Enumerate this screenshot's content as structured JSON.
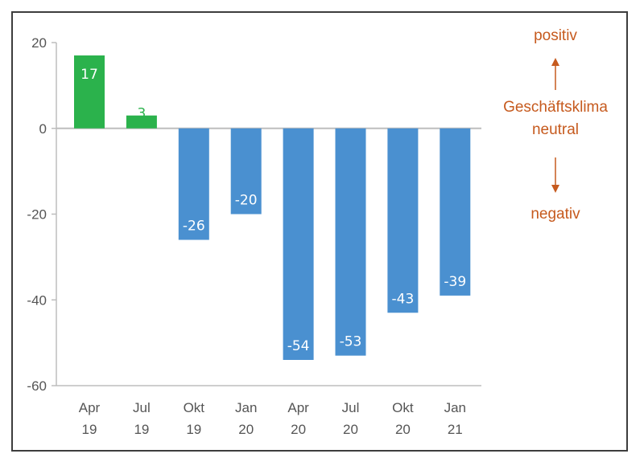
{
  "chart_data": {
    "type": "bar",
    "categories": [
      [
        "Apr",
        "19"
      ],
      [
        "Jul",
        "19"
      ],
      [
        "Okt",
        "19"
      ],
      [
        "Jan",
        "20"
      ],
      [
        "Apr",
        "20"
      ],
      [
        "Jul",
        "20"
      ],
      [
        "Okt",
        "20"
      ],
      [
        "Jan",
        "21"
      ]
    ],
    "values": [
      17,
      3,
      -26,
      -20,
      -54,
      -53,
      -43,
      -39
    ],
    "data_labels": [
      "17",
      "3",
      "-26",
      "-20",
      "-54",
      "-53",
      "-43",
      "-39"
    ],
    "ylim": [
      -60,
      20
    ],
    "yticks": [
      20,
      0,
      -20,
      -40,
      -60
    ],
    "ytick_labels": [
      "20",
      "0",
      "-20",
      "-40",
      "-60"
    ],
    "colors": {
      "positive": "#2bb24c",
      "negative": "#4a90d0",
      "annotation": "#c65a1e",
      "axis": "#bdbdbd"
    },
    "annotation": {
      "top": "positiv",
      "middle_1": "Geschäftsklima",
      "middle_2": "neutral",
      "bottom": "negativ"
    }
  }
}
